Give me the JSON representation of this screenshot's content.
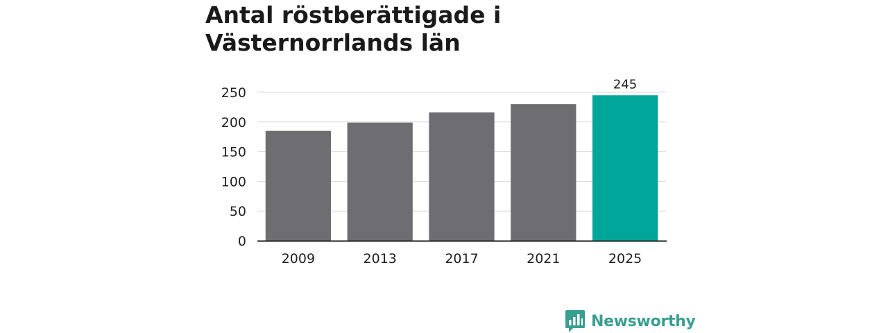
{
  "title": "Antal röstberättigade i Västernorrlands län",
  "brand": {
    "name": "Newsworthy",
    "color": "#3a9e92",
    "icon": "bar-chart-bubble-icon"
  },
  "colors": {
    "bar": "#6e6d72",
    "highlight": "#00a69a",
    "grid": "#d9d9d9",
    "axis": "#222222"
  },
  "chart_data": {
    "type": "bar",
    "categories": [
      "2009",
      "2013",
      "2017",
      "2021",
      "2025"
    ],
    "values": [
      185,
      199,
      216,
      230,
      245
    ],
    "highlight_index": 4,
    "data_labels": [
      null,
      null,
      null,
      null,
      "245"
    ],
    "ylim": [
      0,
      250
    ],
    "yticks": [
      0,
      50,
      100,
      150,
      200,
      250
    ],
    "grid": true,
    "xlabel": "",
    "ylabel": ""
  }
}
